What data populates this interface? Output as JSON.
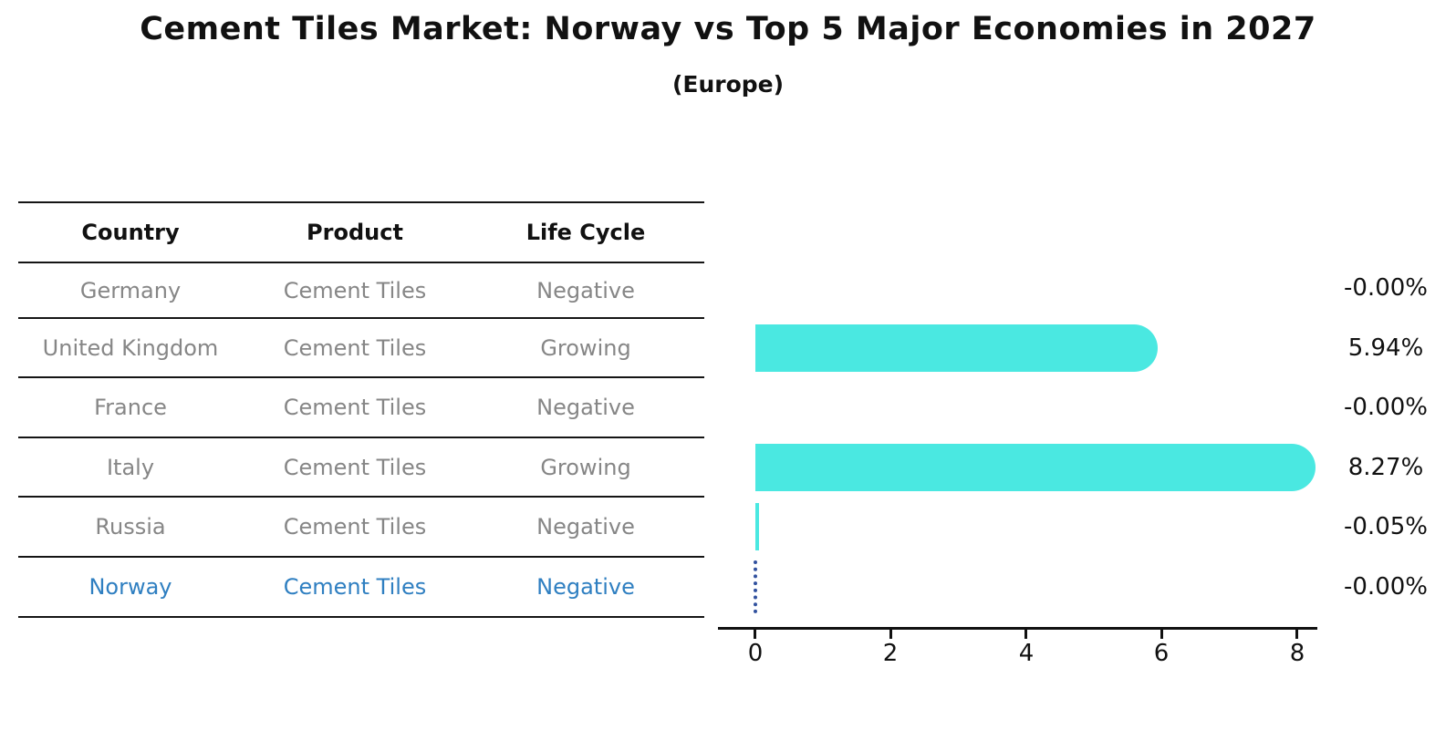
{
  "title": "Cement Tiles Market: Norway vs Top 5 Major Economies in 2027",
  "subtitle": "(Europe)",
  "table": {
    "headers": [
      "Country",
      "Product",
      "Life Cycle"
    ],
    "rows": [
      {
        "country": "Germany",
        "product": "Cement Tiles",
        "life_cycle": "Negative"
      },
      {
        "country": "United Kingdom",
        "product": "Cement Tiles",
        "life_cycle": "Growing"
      },
      {
        "country": "France",
        "product": "Cement Tiles",
        "life_cycle": "Negative"
      },
      {
        "country": "Italy",
        "product": "Cement Tiles",
        "life_cycle": "Growing"
      },
      {
        "country": "Russia",
        "product": "Cement Tiles",
        "life_cycle": "Negative"
      },
      {
        "country": "Norway",
        "product": "Cement Tiles",
        "life_cycle": "Negative"
      }
    ],
    "highlight_row": "Norway",
    "highlight_color": "#2f7fc1",
    "body_text_color": "#868686",
    "header_text_color": "#111111"
  },
  "chart_data": {
    "type": "bar",
    "orientation": "horizontal",
    "categories": [
      "Germany",
      "United Kingdom",
      "France",
      "Italy",
      "Russia",
      "Norway"
    ],
    "values": [
      -0.0,
      5.94,
      -0.0,
      8.27,
      -0.05,
      -0.0
    ],
    "value_labels": [
      "-0.00%",
      "5.94%",
      "-0.00%",
      "8.27%",
      "-0.05%",
      "-0.00%"
    ],
    "xticks": [
      0,
      2,
      4,
      6,
      8
    ],
    "xlim": [
      -0.55,
      8.3
    ],
    "grid": false,
    "legend": false,
    "bar_color": "#4ae8e1",
    "highlight_index": 5,
    "highlight_marker_style": "dotted-vertical-line",
    "highlight_marker_color": "#31519e"
  }
}
